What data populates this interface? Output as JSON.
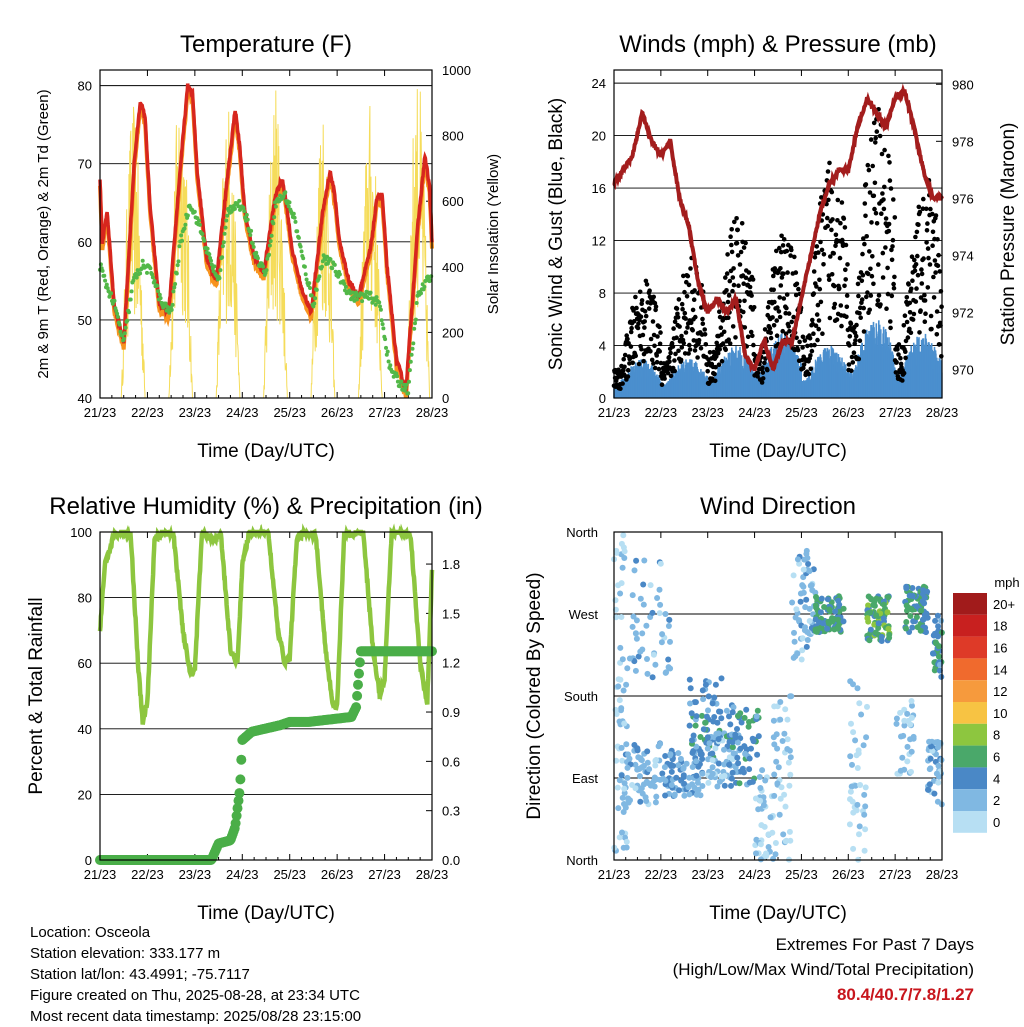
{
  "chart_data": [
    {
      "type": "line",
      "title": "Temperature (F)",
      "xlabel": "Time (Day/UTC)",
      "ylabel": "2m & 9m T (Red, Orange) & 2m Td (Green)",
      "y2label": "Solar Insolation (Yellow)",
      "ylim": [
        40,
        82
      ],
      "y2lim": [
        0,
        1000
      ],
      "yticks": [
        "40",
        "50",
        "60",
        "70",
        "80"
      ],
      "y2ticks": [
        "0",
        "200",
        "400",
        "600",
        "800",
        "1000"
      ],
      "xticks": [
        "21/23",
        "22/23",
        "23/23",
        "24/23",
        "25/23",
        "26/23",
        "27/23",
        "28/23"
      ],
      "colors": {
        "t2m": "#d7261e",
        "t9m": "#f7931e",
        "td": "#52b848",
        "solar": "#f5dc5a"
      },
      "series": [
        {
          "name": "2m T",
          "color": "#d7261e",
          "x": [
            0,
            0.05,
            0.15,
            0.3,
            0.5,
            0.72,
            0.85,
            0.95,
            1.05,
            1.25,
            1.45,
            1.7,
            1.85,
            1.95,
            2.05,
            2.25,
            2.45,
            2.7,
            2.85,
            2.95,
            3.05,
            3.25,
            3.45,
            3.7,
            3.85,
            3.95,
            4.05,
            4.25,
            4.45,
            4.7,
            4.85,
            4.95,
            5.05,
            5.25,
            5.45,
            5.7,
            5.85,
            5.95,
            6.05,
            6.25,
            6.45,
            6.7,
            6.85,
            6.95,
            7.0
          ],
          "y": [
            68,
            60,
            64,
            52,
            47,
            70,
            78,
            76,
            65,
            52,
            51,
            70,
            80,
            79,
            69,
            58,
            55,
            69,
            77,
            72,
            64,
            58,
            56,
            66,
            68,
            64,
            59,
            54,
            51,
            64,
            69,
            66,
            60,
            55,
            53,
            59,
            66,
            66,
            57,
            45,
            41,
            62,
            71,
            67,
            60
          ]
        },
        {
          "name": "2m Td",
          "color": "#52b848",
          "x": [
            0,
            0.1,
            0.3,
            0.5,
            0.7,
            0.9,
            1.1,
            1.3,
            1.5,
            1.7,
            1.9,
            2.1,
            2.3,
            2.5,
            2.7,
            2.9,
            3.1,
            3.3,
            3.5,
            3.7,
            3.9,
            4.1,
            4.3,
            4.5,
            4.7,
            4.9,
            5.1,
            5.3,
            5.5,
            5.7,
            5.9,
            6.1,
            6.3,
            6.5,
            6.7,
            6.9,
            7.0
          ],
          "y": [
            57,
            55,
            52,
            47,
            55,
            57,
            56,
            52,
            51,
            60,
            65,
            62,
            58,
            55,
            64,
            65,
            63,
            58,
            56,
            65,
            66,
            63,
            57,
            52,
            58,
            57,
            55,
            53,
            53,
            53,
            52,
            44,
            42,
            41,
            53,
            55,
            56
          ]
        },
        {
          "name": "Solar",
          "color": "#f5dc5a",
          "days": [
            0,
            1,
            2,
            3,
            4,
            5,
            6
          ],
          "peaks": [
            900,
            1000,
            920,
            960,
            940,
            910,
            1000
          ]
        }
      ]
    },
    {
      "type": "scatter",
      "title": "Winds (mph) & Pressure (mb)",
      "xlabel": "Time (Day/UTC)",
      "ylabel": "Sonic Wind & Gust (Blue, Black)",
      "y2label": "Station Pressure (Maroon)",
      "ylim": [
        0,
        25
      ],
      "y2lim": [
        969,
        980.5
      ],
      "yticks": [
        "0",
        "4",
        "8",
        "12",
        "16",
        "20",
        "24"
      ],
      "y2ticks": [
        "970",
        "972",
        "974",
        "976",
        "978",
        "980"
      ],
      "xticks": [
        "21/23",
        "22/23",
        "23/23",
        "24/23",
        "25/23",
        "26/23",
        "27/23",
        "28/23"
      ],
      "colors": {
        "wind": "#4b8fce",
        "gust": "#000000",
        "pressure": "#a31d1d"
      },
      "series": [
        {
          "name": "Pressure",
          "color": "#a31d1d",
          "x": [
            0,
            0.2,
            0.4,
            0.6,
            0.8,
            1.0,
            1.2,
            1.4,
            1.6,
            1.8,
            2.0,
            2.2,
            2.4,
            2.6,
            2.8,
            3.0,
            3.2,
            3.4,
            3.6,
            3.8,
            4.0,
            4.2,
            4.4,
            4.6,
            4.8,
            5.0,
            5.2,
            5.4,
            5.6,
            5.8,
            6.0,
            6.2,
            6.4,
            6.6,
            6.8,
            7.0
          ],
          "y": [
            976.5,
            977,
            977.5,
            979,
            978,
            977.5,
            978,
            976,
            975,
            973,
            972,
            972.5,
            972,
            972.5,
            970.5,
            970,
            971,
            970,
            971,
            971,
            972.5,
            974,
            975.5,
            976.5,
            977,
            977,
            978.5,
            979.5,
            979,
            978.5,
            979.5,
            979.8,
            978.5,
            977,
            976,
            976
          ]
        },
        {
          "name": "Wind",
          "color": "#4b8fce",
          "dailymax": [
            3,
            3,
            4,
            5,
            4,
            6,
            5,
            6
          ]
        },
        {
          "name": "Gust",
          "color": "#000000",
          "dailymax": [
            9,
            11,
            14,
            13,
            19,
            23,
            17,
            19
          ]
        }
      ]
    },
    {
      "type": "line",
      "title": "Relative Humidity (%) & Precipitation (in)",
      "xlabel": "Time (Day/UTC)",
      "ylabel": "Percent & Total Rainfall",
      "ylim": [
        0,
        100
      ],
      "y2lim": [
        0,
        1.995
      ],
      "yticks": [
        "0",
        "20",
        "40",
        "60",
        "80",
        "100"
      ],
      "y2ticks": [
        "0.0",
        "0.3",
        "0.6",
        "0.9",
        "1.2",
        "1.5",
        "1.8"
      ],
      "xticks": [
        "21/23",
        "22/23",
        "23/23",
        "24/23",
        "25/23",
        "26/23",
        "27/23",
        "28/23"
      ],
      "colors": {
        "rh": "#8dc63f",
        "precip": "#4aae48"
      },
      "series": [
        {
          "name": "RH",
          "color": "#8dc63f",
          "x": [
            0,
            0.1,
            0.3,
            0.5,
            0.65,
            0.8,
            0.9,
            1.0,
            1.15,
            1.35,
            1.55,
            1.75,
            1.9,
            2.0,
            2.15,
            2.35,
            2.55,
            2.75,
            2.9,
            3.0,
            3.15,
            3.35,
            3.55,
            3.75,
            3.9,
            4.0,
            4.15,
            4.35,
            4.55,
            4.75,
            4.9,
            5.0,
            5.15,
            5.35,
            5.55,
            5.75,
            5.9,
            6.0,
            6.15,
            6.35,
            6.55,
            6.75,
            6.9,
            7.0
          ],
          "y": [
            70,
            90,
            99,
            100,
            99,
            60,
            42,
            48,
            98,
            100,
            99,
            70,
            57,
            58,
            100,
            98,
            99,
            64,
            60,
            90,
            100,
            100,
            100,
            70,
            60,
            62,
            98,
            100,
            99,
            65,
            48,
            47,
            100,
            99,
            100,
            65,
            50,
            55,
            100,
            100,
            99,
            60,
            48,
            88
          ]
        },
        {
          "name": "Precipitation",
          "color": "#4aae48",
          "x": [
            0,
            0.5,
            1.0,
            1.5,
            2.0,
            2.35,
            2.5,
            2.75,
            2.85,
            2.95,
            3.0,
            3.2,
            3.5,
            3.8,
            4.0,
            4.4,
            4.7,
            5.0,
            5.3,
            5.4,
            5.5,
            5.8,
            6.0,
            6.5,
            7.0
          ],
          "y": [
            0,
            0,
            0,
            0,
            0,
            0,
            0.1,
            0.12,
            0.2,
            0.43,
            0.73,
            0.78,
            0.8,
            0.82,
            0.84,
            0.84,
            0.85,
            0.86,
            0.87,
            0.93,
            1.27,
            1.27,
            1.27,
            1.27,
            1.27
          ]
        }
      ]
    },
    {
      "type": "scatter",
      "title": "Wind Direction",
      "xlabel": "Time (Day/UTC)",
      "ylabel": "Direction (Colored By Speed)",
      "yticks": [
        "North",
        "East",
        "South",
        "West",
        "North"
      ],
      "xticks": [
        "21/23",
        "22/23",
        "23/23",
        "24/23",
        "25/23",
        "26/23",
        "27/23",
        "28/23"
      ],
      "legend_title": "mph",
      "legend_labels": [
        "20+",
        "18",
        "16",
        "14",
        "12",
        "10",
        "8",
        "6",
        "4",
        "2",
        "0"
      ],
      "legend_colors": [
        "#a11b1b",
        "#c8201f",
        "#de3a28",
        "#f06a2d",
        "#f69a3d",
        "#f7c343",
        "#8dc63f",
        "#4aa86a",
        "#4a88c6",
        "#80b8e2",
        "#b7dff3"
      ],
      "clusters": [
        {
          "day": 0.5,
          "dirs": "variable",
          "speed": 1
        },
        {
          "day": 1.8,
          "dirs": "east-south",
          "speed": 3
        },
        {
          "day": 2.8,
          "dirs": "south-east",
          "speed": 3
        },
        {
          "day": 3.8,
          "dirs": "west",
          "speed": 5
        },
        {
          "day": 4.8,
          "dirs": "west",
          "speed": 6
        },
        {
          "day": 5.8,
          "dirs": "west",
          "speed": 6
        },
        {
          "day": 6.9,
          "dirs": "west-south",
          "speed": 4
        }
      ]
    }
  ],
  "info": {
    "location": "Location: Osceola",
    "elevation": "Station elevation: 333.177 m",
    "latlon": "Station lat/lon: 43.4991; -75.7117",
    "created": "Figure created on Thu, 2025-08-28, at 23:34 UTC",
    "timestamp": "Most recent data timestamp: 2025/08/28 23:15:00"
  },
  "extremes": {
    "title": "Extremes For Past 7 Days",
    "subtitle": "(High/Low/Max Wind/Total Precipitation)",
    "values": "80.4/40.7/7.8/1.27"
  }
}
